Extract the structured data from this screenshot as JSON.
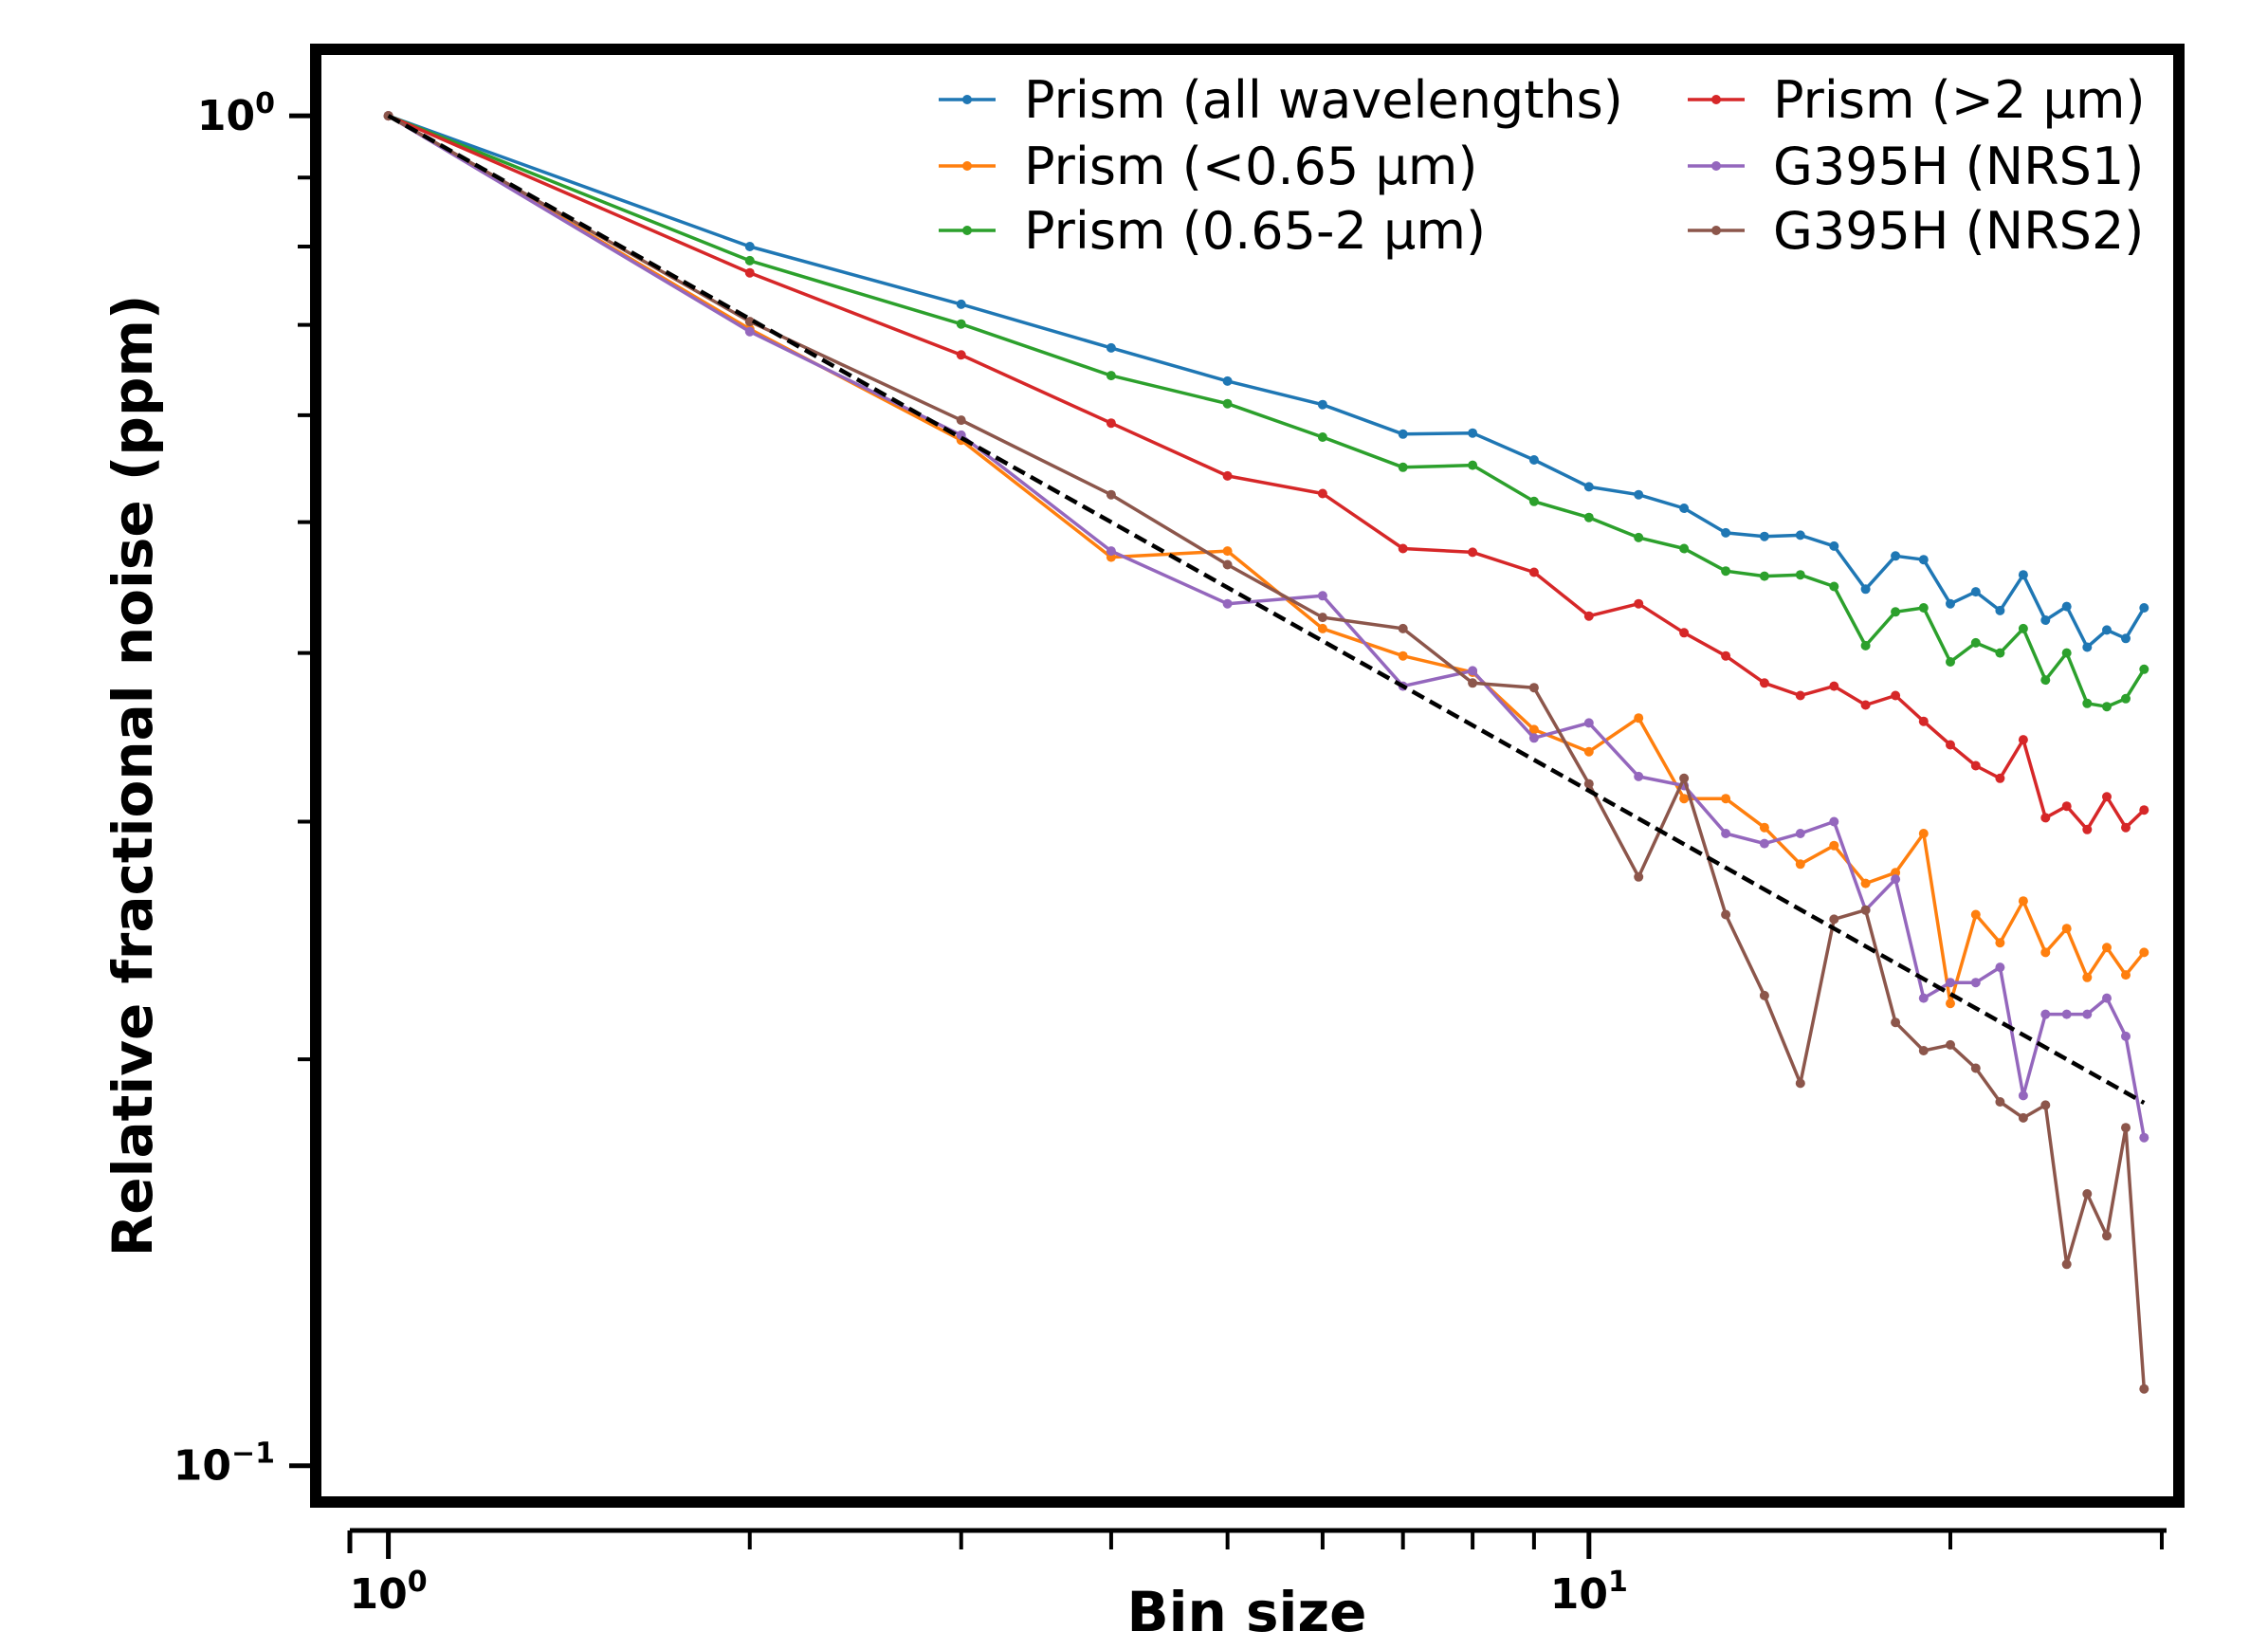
{
  "chart_data": {
    "type": "line",
    "xscale": "log",
    "yscale": "log",
    "xlabel": "Bin size",
    "ylabel": "Relative fractional noise (ppm)",
    "xlim": [
      0.87,
      31
    ],
    "ylim": [
      0.094,
      1.12
    ],
    "x_ticks": [
      {
        "value": 1,
        "base": "10",
        "exp": "0"
      },
      {
        "value": 10,
        "base": "10",
        "exp": "1"
      }
    ],
    "y_ticks": [
      {
        "value": 1,
        "base": "10",
        "exp": "0"
      },
      {
        "value": 0.1,
        "base": "10",
        "exp": "−1"
      }
    ],
    "x_minor_ticks": [
      2,
      3,
      4,
      5,
      6,
      7,
      8,
      9,
      20,
      30
    ],
    "y_minor_ticks": [
      0.2,
      0.3,
      0.4,
      0.5,
      0.6,
      0.7,
      0.8,
      0.9
    ],
    "legend_position": "top-right",
    "x": [
      1,
      2,
      3,
      4,
      5,
      6,
      7,
      8,
      9,
      10,
      11,
      12,
      13,
      14,
      15,
      16,
      17,
      18,
      19,
      20,
      21,
      22,
      23,
      24,
      25,
      26,
      27,
      28,
      29
    ],
    "series": [
      {
        "name": "Prism (all wavelengths)",
        "color": "#1f77b4",
        "values": [
          1.0,
          0.8,
          0.725,
          0.673,
          0.636,
          0.611,
          0.581,
          0.582,
          0.556,
          0.531,
          0.524,
          0.512,
          0.491,
          0.488,
          0.489,
          0.48,
          0.446,
          0.472,
          0.469,
          0.435,
          0.444,
          0.43,
          0.457,
          0.423,
          0.433,
          0.404,
          0.416,
          0.41,
          0.432
        ]
      },
      {
        "name": "Prism (<0.65 µm)",
        "color": "#ff7f0e",
        "values": [
          1.0,
          0.695,
          0.575,
          0.471,
          0.476,
          0.417,
          0.398,
          0.387,
          0.351,
          0.338,
          0.358,
          0.312,
          0.312,
          0.297,
          0.279,
          0.288,
          0.27,
          0.275,
          0.294,
          0.22,
          0.256,
          0.244,
          0.262,
          0.24,
          0.25,
          0.23,
          0.242,
          0.231,
          0.24
        ]
      },
      {
        "name": "Prism (0.65-2 µm)",
        "color": "#2ca02c",
        "values": [
          1.0,
          0.781,
          0.701,
          0.642,
          0.612,
          0.578,
          0.549,
          0.551,
          0.518,
          0.504,
          0.487,
          0.478,
          0.46,
          0.456,
          0.457,
          0.448,
          0.405,
          0.429,
          0.432,
          0.394,
          0.407,
          0.4,
          0.417,
          0.382,
          0.4,
          0.367,
          0.365,
          0.37,
          0.389
        ]
      },
      {
        "name": "Prism (>2 µm)",
        "color": "#d62728",
        "values": [
          1.0,
          0.765,
          0.665,
          0.592,
          0.541,
          0.525,
          0.478,
          0.475,
          0.459,
          0.426,
          0.435,
          0.414,
          0.398,
          0.38,
          0.372,
          0.378,
          0.366,
          0.372,
          0.356,
          0.342,
          0.33,
          0.323,
          0.345,
          0.302,
          0.308,
          0.296,
          0.313,
          0.297,
          0.306
        ]
      },
      {
        "name": "G395H (NRS1)",
        "color": "#9467bd",
        "values": [
          1.0,
          0.692,
          0.58,
          0.476,
          0.435,
          0.441,
          0.378,
          0.388,
          0.346,
          0.355,
          0.324,
          0.319,
          0.294,
          0.289,
          0.294,
          0.3,
          0.258,
          0.272,
          0.222,
          0.228,
          0.228,
          0.234,
          0.188,
          0.216,
          0.216,
          0.216,
          0.222,
          0.208,
          0.175
        ]
      },
      {
        "name": "G395H (NRS2)",
        "color": "#8c564b",
        "values": [
          1.0,
          0.704,
          0.595,
          0.524,
          0.465,
          0.425,
          0.417,
          0.38,
          0.377,
          0.32,
          0.273,
          0.323,
          0.256,
          0.223,
          0.192,
          0.254,
          0.258,
          0.213,
          0.203,
          0.205,
          0.197,
          0.186,
          0.181,
          0.185,
          0.141,
          0.159,
          0.148,
          0.178,
          0.114
        ]
      }
    ],
    "reference_line": {
      "style": "dashed",
      "color": "#000000",
      "description": "1/sqrt(N)",
      "x": [
        1,
        29
      ],
      "y": [
        1.0,
        0.1857
      ]
    }
  }
}
